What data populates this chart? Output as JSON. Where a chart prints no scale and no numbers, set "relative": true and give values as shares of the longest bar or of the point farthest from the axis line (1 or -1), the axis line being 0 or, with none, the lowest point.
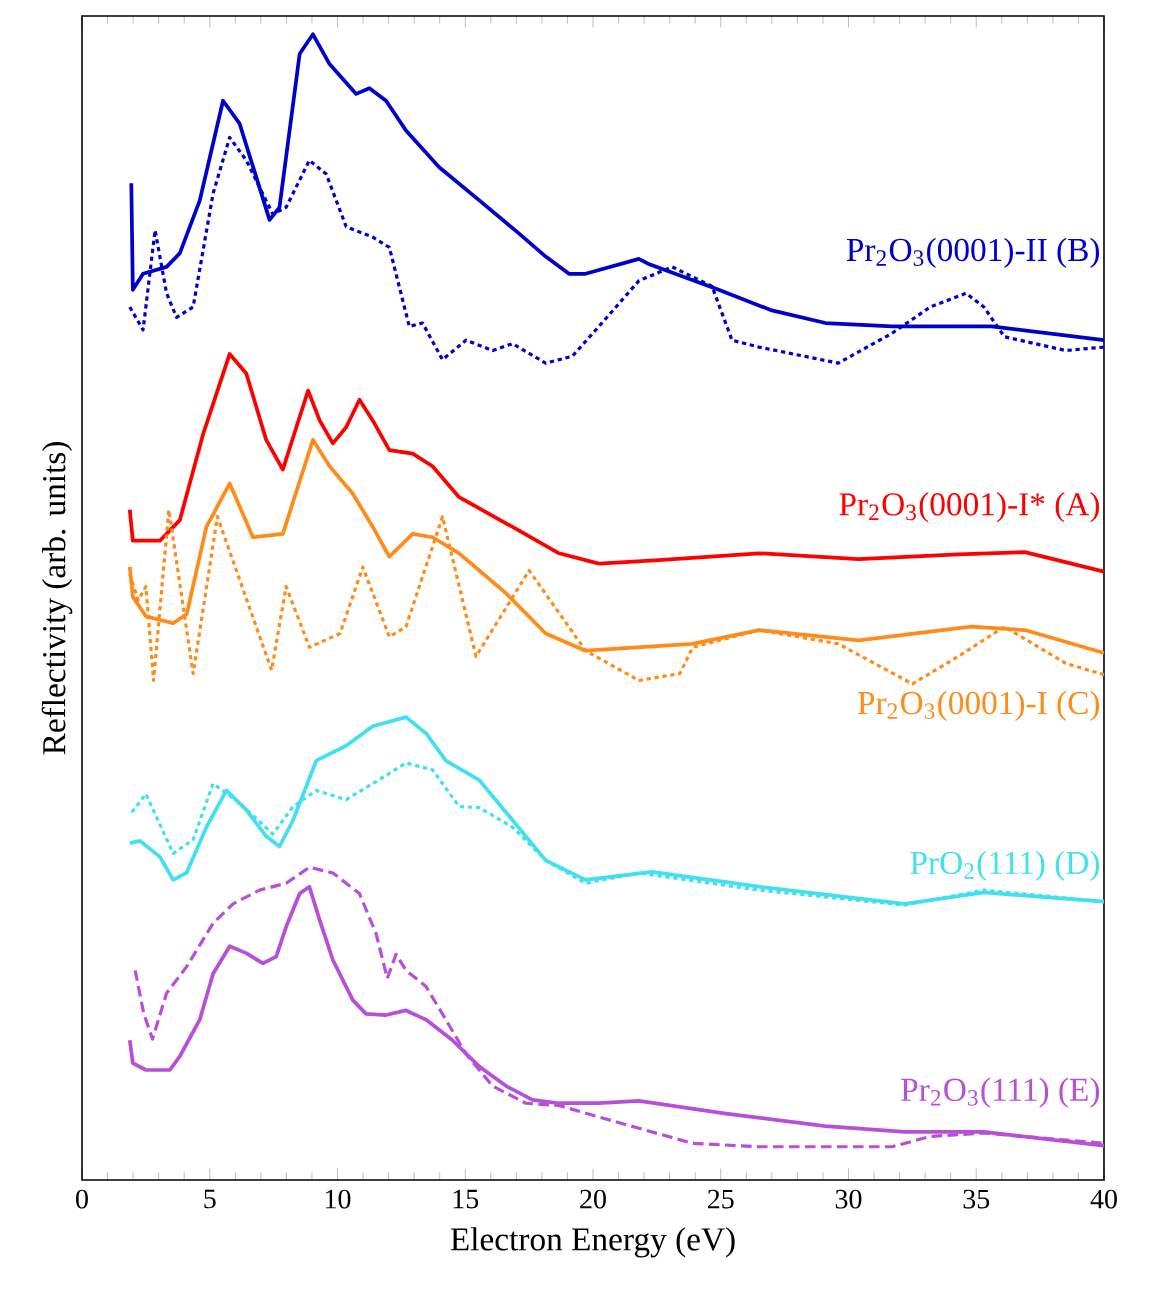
{
  "chart_data": {
    "type": "line",
    "relative": true,
    "xlabel": "Electron Energy (eV)",
    "ylabel": "Reflectivity (arb. units)",
    "xlim": [
      0,
      40
    ],
    "xticks": [
      0,
      5,
      10,
      15,
      20,
      25,
      30,
      35,
      40
    ],
    "series": [
      {
        "name": "Pr$_{2}$O$_{3}$(0001)-II (B)",
        "color": "#0000cc",
        "line_style": "solid",
        "x": [
          1.93,
          1.99,
          2.39,
          3.31,
          3.83,
          4.61,
          5.52,
          6.17,
          7.34,
          7.73,
          8.52,
          9.04,
          9.69,
          10.73,
          11.25,
          11.9,
          12.68,
          13.98,
          15.55,
          17.11,
          18.15,
          19.06,
          19.71,
          21.8,
          22.13,
          24.92,
          27.0,
          29.1,
          31.7,
          35.6,
          40.0
        ],
        "values": [
          0.87,
          0.777,
          0.791,
          0.797,
          0.809,
          0.855,
          0.942,
          0.922,
          0.838,
          0.849,
          0.983,
          1.0,
          0.974,
          0.948,
          0.953,
          0.942,
          0.916,
          0.884,
          0.855,
          0.826,
          0.806,
          0.791,
          0.791,
          0.804,
          0.8,
          0.777,
          0.759,
          0.748,
          0.745,
          0.745,
          0.733
        ]
      },
      {
        "color": "#0000cc",
        "line_style": "dotted",
        "x": [
          1.87,
          2.39,
          2.86,
          3.31,
          3.7,
          4.35,
          5.13,
          5.78,
          6.43,
          7.47,
          7.99,
          8.9,
          9.56,
          10.34,
          11.38,
          12.03,
          12.81,
          13.33,
          14.11,
          15.03,
          16.07,
          16.85,
          18.15,
          19.19,
          20.23,
          21.8,
          23.1,
          24.66,
          25.44,
          26.5,
          29.6,
          31.7,
          33.2,
          34.6,
          35.3,
          36.1,
          38.5,
          40.0
        ],
        "values": [
          0.762,
          0.742,
          0.829,
          0.774,
          0.753,
          0.762,
          0.861,
          0.91,
          0.89,
          0.843,
          0.849,
          0.89,
          0.878,
          0.832,
          0.823,
          0.814,
          0.745,
          0.748,
          0.716,
          0.733,
          0.724,
          0.73,
          0.713,
          0.719,
          0.745,
          0.785,
          0.797,
          0.78,
          0.733,
          0.727,
          0.713,
          0.739,
          0.762,
          0.774,
          0.762,
          0.736,
          0.724,
          0.727
        ]
      },
      {
        "name": "Pr$_{2}$O$_{3}$(0001)-I* (A)",
        "color": "#ff0000",
        "line_style": "solid",
        "x": [
          1.87,
          1.99,
          3.05,
          3.83,
          4.74,
          5.78,
          6.43,
          7.21,
          7.86,
          8.39,
          8.85,
          9.3,
          9.82,
          10.34,
          10.86,
          11.38,
          12.03,
          12.94,
          13.72,
          14.76,
          16.85,
          18.67,
          20.23,
          22.58,
          26.5,
          30.4,
          34.3,
          36.9,
          40.0
        ],
        "values": [
          0.585,
          0.558,
          0.558,
          0.576,
          0.651,
          0.721,
          0.704,
          0.646,
          0.62,
          0.657,
          0.689,
          0.663,
          0.643,
          0.657,
          0.681,
          0.663,
          0.637,
          0.634,
          0.623,
          0.596,
          0.57,
          0.547,
          0.538,
          0.541,
          0.547,
          0.542,
          0.546,
          0.548,
          0.531
        ]
      },
      {
        "name": "Pr$_{2}$O$_{3}$(0001)-I (C)",
        "color": "#ff8c1a",
        "line_style": "solid",
        "x": [
          1.87,
          1.99,
          2.5,
          3.57,
          4.1,
          4.87,
          5.78,
          6.69,
          7.86,
          9.04,
          9.69,
          10.6,
          11.38,
          12.03,
          12.94,
          13.72,
          14.76,
          15.55,
          16.6,
          18.15,
          19.71,
          23.88,
          26.5,
          30.4,
          34.8,
          36.9,
          40.0
        ],
        "values": [
          0.535,
          0.509,
          0.492,
          0.486,
          0.494,
          0.57,
          0.608,
          0.561,
          0.564,
          0.646,
          0.623,
          0.599,
          0.57,
          0.544,
          0.564,
          0.561,
          0.547,
          0.532,
          0.512,
          0.477,
          0.462,
          0.468,
          0.48,
          0.471,
          0.483,
          0.48,
          0.46
        ]
      },
      {
        "color": "#ff8c1a",
        "line_style": "dotted",
        "x": [
          1.87,
          2.2,
          2.5,
          2.8,
          3.4,
          4.35,
          5.3,
          7.42,
          7.99,
          8.9,
          10.1,
          10.99,
          12.03,
          12.68,
          14.11,
          15.42,
          17.5,
          19.71,
          21.8,
          23.4,
          23.9,
          26.5,
          29.6,
          32.5,
          34.3,
          36.1,
          38.5,
          40.0
        ],
        "values": [
          0.529,
          0.506,
          0.518,
          0.436,
          0.585,
          0.442,
          0.579,
          0.445,
          0.518,
          0.465,
          0.477,
          0.535,
          0.474,
          0.483,
          0.579,
          0.457,
          0.532,
          0.462,
          0.436,
          0.442,
          0.465,
          0.48,
          0.468,
          0.433,
          0.457,
          0.483,
          0.451,
          0.441
        ]
      },
      {
        "name": "PrO$_{2}$(111) (D)",
        "color": "#40e0f0",
        "line_style": "solid",
        "x": [
          1.87,
          2.27,
          3.05,
          3.57,
          4.09,
          4.87,
          5.65,
          6.43,
          7.21,
          7.73,
          8.26,
          9.17,
          10.34,
          11.38,
          12.68,
          13.46,
          14.24,
          15.55,
          16.85,
          18.15,
          19.71,
          22.3,
          26.5,
          32.2,
          35.3,
          40.0
        ],
        "values": [
          0.294,
          0.296,
          0.282,
          0.262,
          0.268,
          0.308,
          0.34,
          0.323,
          0.3,
          0.291,
          0.314,
          0.366,
          0.379,
          0.396,
          0.404,
          0.39,
          0.366,
          0.349,
          0.314,
          0.279,
          0.262,
          0.269,
          0.256,
          0.241,
          0.251,
          0.243
        ]
      },
      {
        "color": "#40e0f0",
        "line_style": "dotted",
        "x": [
          1.95,
          2.5,
          3.57,
          4.35,
          5.13,
          6.17,
          7.47,
          8.26,
          9.17,
          10.34,
          11.38,
          12.68,
          13.72,
          14.76,
          15.55,
          16.85,
          18.15,
          19.71,
          21.8,
          26.5,
          32.2,
          35.3,
          40.0
        ],
        "values": [
          0.321,
          0.337,
          0.285,
          0.297,
          0.346,
          0.329,
          0.302,
          0.326,
          0.34,
          0.332,
          0.346,
          0.364,
          0.358,
          0.326,
          0.325,
          0.308,
          0.279,
          0.259,
          0.268,
          0.253,
          0.24,
          0.253,
          0.243
        ]
      },
      {
        "name": "Pr$_{2}$O$_{3}$(111) (E)",
        "color": "#b84fd8",
        "line_style": "solid",
        "x": [
          1.87,
          1.99,
          2.5,
          3.44,
          3.83,
          4.61,
          5.13,
          5.78,
          6.43,
          7.08,
          7.6,
          7.99,
          8.52,
          8.9,
          9.3,
          9.82,
          10.6,
          11.12,
          11.9,
          12.68,
          13.46,
          14.5,
          15.55,
          16.6,
          17.63,
          18.67,
          20.23,
          21.8,
          25.2,
          29.1,
          32.2,
          35.3,
          40.0
        ],
        "values": [
          0.122,
          0.102,
          0.096,
          0.096,
          0.108,
          0.14,
          0.18,
          0.204,
          0.198,
          0.189,
          0.195,
          0.221,
          0.25,
          0.256,
          0.227,
          0.192,
          0.157,
          0.145,
          0.144,
          0.148,
          0.14,
          0.122,
          0.099,
          0.082,
          0.07,
          0.067,
          0.067,
          0.069,
          0.058,
          0.047,
          0.042,
          0.042,
          0.03
        ]
      },
      {
        "color": "#b84fd8",
        "line_style": "dashed",
        "x": [
          2.08,
          2.42,
          2.76,
          3.31,
          4.09,
          5.13,
          5.91,
          6.95,
          7.99,
          8.9,
          9.82,
          10.86,
          11.51,
          11.95,
          12.29,
          12.68,
          13.46,
          14.24,
          15.03,
          16.07,
          17.37,
          18.67,
          20.23,
          21.5,
          23.9,
          26.5,
          31.7,
          33.2,
          35.3,
          40.0
        ],
        "values": [
          0.183,
          0.145,
          0.123,
          0.163,
          0.186,
          0.224,
          0.241,
          0.253,
          0.259,
          0.273,
          0.268,
          0.25,
          0.215,
          0.176,
          0.197,
          0.183,
          0.169,
          0.14,
          0.11,
          0.082,
          0.067,
          0.065,
          0.055,
          0.047,
          0.032,
          0.029,
          0.029,
          0.038,
          0.041,
          0.032
        ]
      }
    ]
  }
}
